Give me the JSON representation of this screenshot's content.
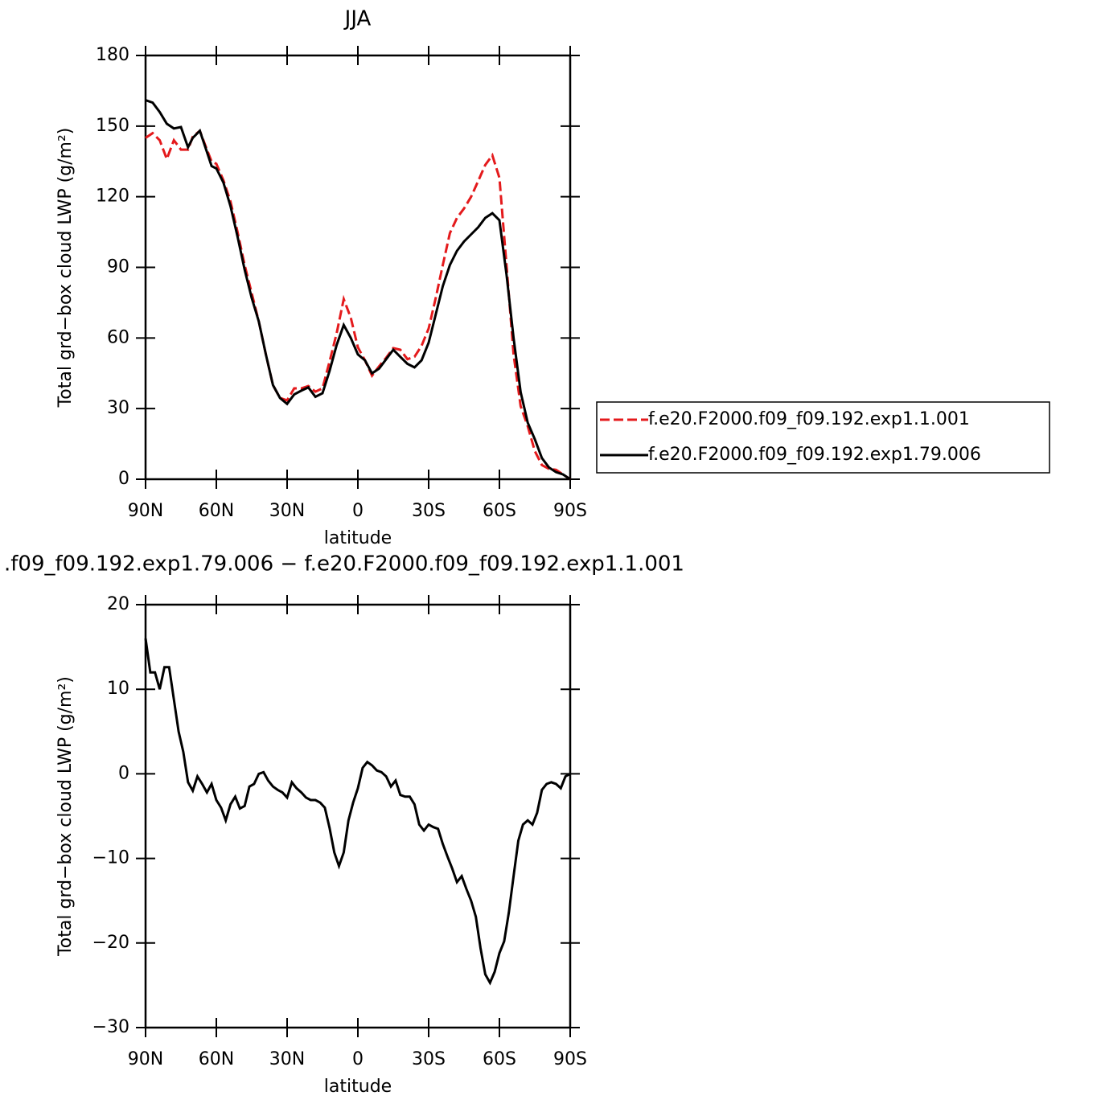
{
  "chart_data": [
    {
      "type": "line",
      "title": "JJA",
      "x_label": "latitude",
      "y_label": "Total grd−box cloud LWP (g/m²)",
      "x": [
        90,
        87,
        84,
        81,
        78,
        75,
        72,
        70,
        67,
        64,
        62,
        60,
        57,
        54,
        51,
        48,
        45,
        42,
        39,
        36,
        33,
        30,
        27,
        24,
        21,
        18,
        15,
        12,
        9,
        6,
        3,
        0,
        -3,
        -6,
        -9,
        -12,
        -15,
        -18,
        -21,
        -24,
        -27,
        -30,
        -33,
        -36,
        -39,
        -42,
        -45,
        -48,
        -51,
        -54,
        -57,
        -60,
        -63,
        -66,
        -69,
        -72,
        -75,
        -78,
        -81,
        -84,
        -87,
        -90
      ],
      "xlim": [
        90,
        -90
      ],
      "xticks": [
        {
          "value": 90,
          "label": "90N"
        },
        {
          "value": 60,
          "label": "60N"
        },
        {
          "value": 30,
          "label": "30N"
        },
        0,
        {
          "value": -30,
          "label": "30S"
        },
        {
          "value": -60,
          "label": "60S"
        },
        {
          "value": -90,
          "label": "90S"
        }
      ],
      "ylim": [
        0,
        180
      ],
      "yticks": [
        0,
        30,
        60,
        90,
        120,
        150,
        180
      ],
      "legend": "right",
      "series": [
        {
          "name": "f.e20.F2000.f09_f09.192.exp1.1.001",
          "color": "#e41a1c",
          "line_style": "dashed",
          "values": [
            145,
            147,
            144,
            136,
            144,
            140,
            140,
            145.5,
            148,
            140,
            135,
            134,
            127,
            118,
            105,
            91,
            79,
            67,
            53,
            40,
            34.5,
            33.5,
            38.6,
            38.6,
            39.6,
            37.2,
            38.6,
            50,
            62,
            76.5,
            68.6,
            56,
            50.5,
            44,
            48,
            51.6,
            55.7,
            55,
            51,
            52,
            56.7,
            64,
            77,
            91,
            104.5,
            111,
            115,
            120,
            126.7,
            133.5,
            137.6,
            128,
            91,
            53,
            31,
            22.5,
            12,
            6,
            4.4,
            4,
            2,
            0
          ]
        },
        {
          "name": "f.e20.F2000.f09_f09.192.exp1.79.006",
          "color": "#000000",
          "line_style": "solid",
          "values": [
            161,
            160,
            156,
            151,
            149,
            149.6,
            141,
            145,
            148,
            139,
            133,
            132,
            126,
            116,
            103,
            89,
            77,
            67,
            53,
            40,
            34.5,
            32,
            36,
            37.6,
            39,
            35,
            36.5,
            46,
            57,
            65.5,
            60,
            53,
            50.5,
            45,
            47,
            51,
            55,
            52,
            49,
            47.5,
            50.5,
            58,
            70,
            82,
            91,
            97,
            101,
            104,
            107,
            111,
            113,
            110,
            87,
            60,
            37,
            24,
            17,
            9,
            5,
            3,
            2,
            0
          ]
        }
      ]
    },
    {
      "type": "line",
      "title": ".f09_f09.192.exp1.79.006 − f.e20.F2000.f09_f09.192.exp1.1.001",
      "x_label": "latitude",
      "y_label": "Total grd−box cloud LWP (g/m²)",
      "x": [
        90,
        88,
        86,
        84,
        82,
        80,
        78,
        76,
        74,
        72,
        70,
        68,
        66,
        64,
        62,
        60,
        58,
        56,
        54,
        52,
        50,
        48,
        46,
        44,
        42,
        40,
        38,
        36,
        34,
        32,
        30,
        28,
        26,
        24,
        22,
        20,
        18,
        16,
        14,
        12,
        10,
        8,
        6,
        4,
        2,
        0,
        -2,
        -4,
        -6,
        -8,
        -10,
        -12,
        -14,
        -16,
        -18,
        -20,
        -22,
        -24,
        -26,
        -28,
        -30,
        -32,
        -34,
        -36,
        -38,
        -40,
        -42,
        -44,
        -46,
        -48,
        -50,
        -52,
        -54,
        -56,
        -58,
        -60,
        -62,
        -64,
        -66,
        -68,
        -70,
        -72,
        -74,
        -76,
        -78,
        -80,
        -82,
        -84,
        -86,
        -88,
        -90
      ],
      "xlim": [
        90,
        -90
      ],
      "xticks": [
        {
          "value": 90,
          "label": "90N"
        },
        {
          "value": 60,
          "label": "60N"
        },
        {
          "value": 30,
          "label": "30N"
        },
        0,
        {
          "value": -30,
          "label": "30S"
        },
        {
          "value": -60,
          "label": "60S"
        },
        {
          "value": -90,
          "label": "90S"
        }
      ],
      "ylim": [
        -30,
        20
      ],
      "yticks": [
        {
          "value": -30,
          "label": "−30"
        },
        {
          "value": -20,
          "label": "−20"
        },
        {
          "value": -10,
          "label": "−10"
        },
        0,
        10,
        20
      ],
      "series": [
        {
          "color": "#000000",
          "line_style": "solid",
          "values": [
            16,
            12,
            12,
            10,
            12.6,
            12.6,
            8.8,
            5,
            2.6,
            -1,
            -2,
            -0.3,
            -1.2,
            -2.2,
            -1.2,
            -3.1,
            -4,
            -5.5,
            -3.6,
            -2.7,
            -4.1,
            -3.8,
            -1.5,
            -1.2,
            0,
            0.2,
            -0.8,
            -1.5,
            -1.9,
            -2.2,
            -2.8,
            -1,
            -1.7,
            -2.2,
            -2.8,
            -3.1,
            -3.1,
            -3.4,
            -4,
            -6.4,
            -9.3,
            -10.9,
            -9.3,
            -5.5,
            -3.4,
            -1.7,
            0.7,
            1.4,
            1,
            0.4,
            0.2,
            -0.3,
            -1.5,
            -0.8,
            -2.5,
            -2.7,
            -2.7,
            -3.6,
            -6,
            -6.7,
            -6,
            -6.3,
            -6.5,
            -8.3,
            -9.8,
            -11.2,
            -12.8,
            -12.1,
            -13.6,
            -15,
            -16.9,
            -20.6,
            -23.7,
            -24.7,
            -23.4,
            -21.2,
            -19.8,
            -16.4,
            -12.1,
            -7.9,
            -6,
            -5.5,
            -6,
            -4.6,
            -1.9,
            -1.2,
            -1,
            -1.2,
            -1.7,
            -0.3,
            0
          ]
        }
      ]
    }
  ]
}
